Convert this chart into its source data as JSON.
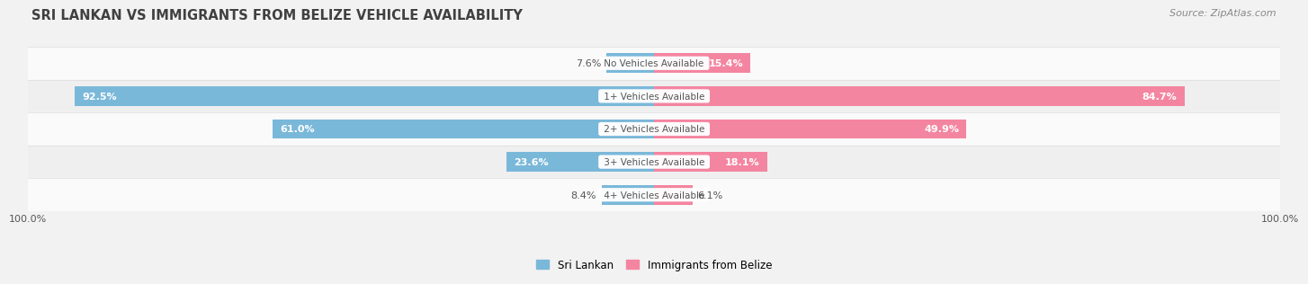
{
  "title": "SRI LANKAN VS IMMIGRANTS FROM BELIZE VEHICLE AVAILABILITY",
  "source": "Source: ZipAtlas.com",
  "categories": [
    "No Vehicles Available",
    "1+ Vehicles Available",
    "2+ Vehicles Available",
    "3+ Vehicles Available",
    "4+ Vehicles Available"
  ],
  "sri_lankan": [
    7.6,
    92.5,
    61.0,
    23.6,
    8.4
  ],
  "belize": [
    15.4,
    84.7,
    49.9,
    18.1,
    6.1
  ],
  "sri_lankan_color": "#7ab8d9",
  "belize_color": "#f485a0",
  "bar_height": 0.6,
  "background_color": "#f2f2f2",
  "row_colors": [
    "#fafafa",
    "#efefef"
  ],
  "title_color": "#404040",
  "label_color": "#555555",
  "source_color": "#888888",
  "axis_label": "100.0%",
  "max_val": 100,
  "title_fontsize": 10.5,
  "source_fontsize": 8,
  "category_fontsize": 7.5,
  "value_fontsize": 8,
  "inside_threshold": 12
}
